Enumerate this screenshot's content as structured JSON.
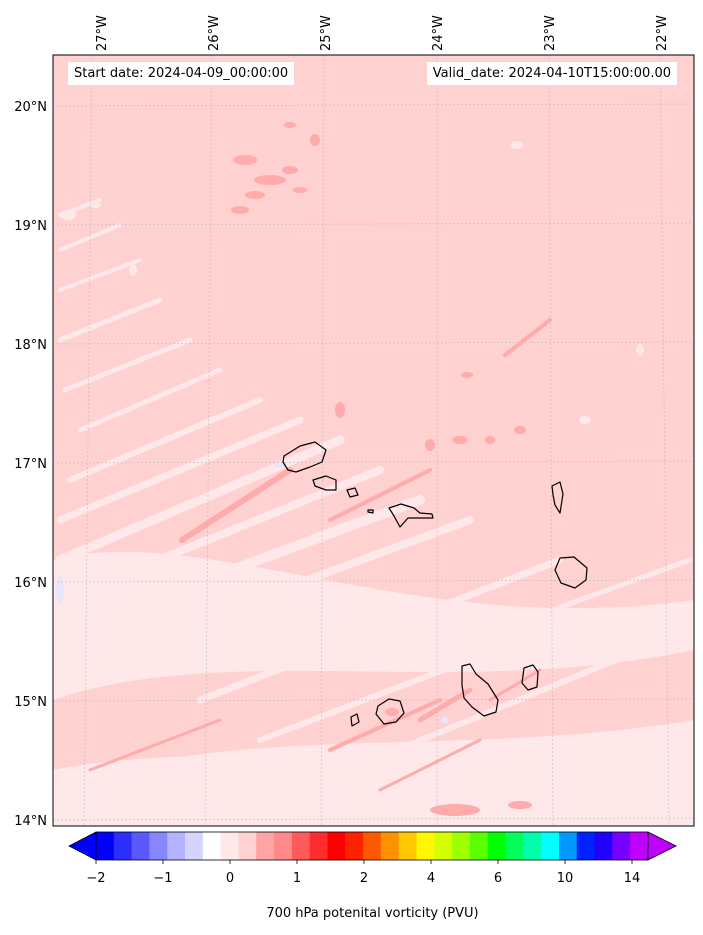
{
  "header": {
    "start_text": "Start date: 2024-04-09_00:00:00",
    "valid_text": "Valid_date: 2024-04-10T15:00:00.00"
  },
  "map": {
    "lon_labels": [
      "27°W",
      "26°W",
      "25°W",
      "24°W",
      "23°W",
      "22°W"
    ],
    "lat_labels": [
      "20°N",
      "19°N",
      "18°N",
      "17°N",
      "16°N",
      "15°N",
      "14°N"
    ],
    "background_color": "#ffd1d1",
    "band_colors": {
      "light": "#ffe8ea",
      "medium": "#ffaaab",
      "pale_blue": "#e6e6ff"
    }
  },
  "colorbar": {
    "title": "700 hPa potenital vorticity (PVU)",
    "tick_labels": [
      "−2",
      "−1",
      "0",
      "1",
      "2",
      "4",
      "6",
      "10",
      "14"
    ],
    "colors": [
      "#0000ff",
      "#2d2dff",
      "#5959ff",
      "#8686ff",
      "#b3b3ff",
      "#d4d4ff",
      "#ffffff",
      "#ffe8e8",
      "#ffd1d1",
      "#ffa3a3",
      "#ff8a8a",
      "#ff5b5b",
      "#ff2d2d",
      "#ff0000",
      "#ff2200",
      "#ff5900",
      "#ff9100",
      "#ffc800",
      "#fff700",
      "#d4ff00",
      "#a0ff00",
      "#5bff00",
      "#00ff00",
      "#00ff59",
      "#00ffaa",
      "#00ffff",
      "#0099ff",
      "#0022ff",
      "#2200ff",
      "#7700ff",
      "#c000ff"
    ],
    "extend": "both"
  }
}
